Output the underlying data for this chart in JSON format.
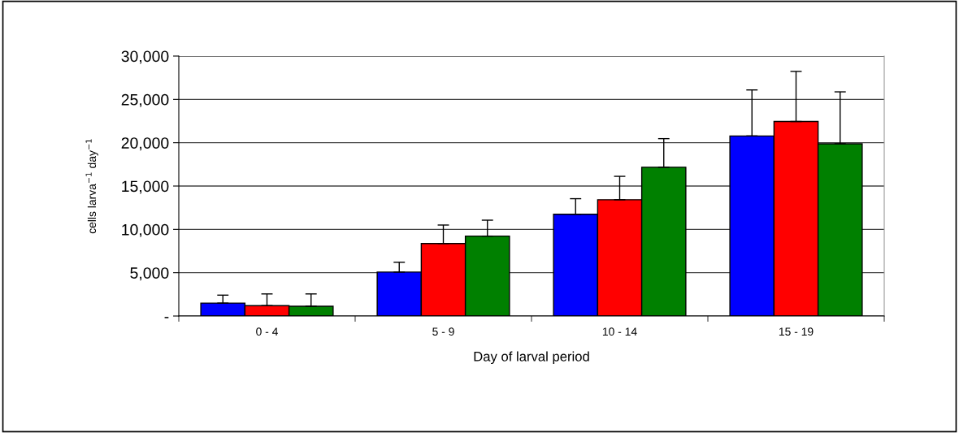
{
  "chart_data": {
    "type": "bar",
    "xlabel": "Day of larval period",
    "ylabel": "cells larva$^{−1}$ day$^{−1}$",
    "categories": [
      "0 - 4",
      "5 - 9",
      "10 - 14",
      "15 - 19"
    ],
    "series": [
      {
        "color": "#0000ff",
        "values": [
          1490,
          5070,
          11740,
          20780
        ],
        "errors": [
          [
            1490,
            2410
          ],
          [
            5070,
            6200
          ],
          [
            11740,
            13540
          ],
          [
            20780,
            26090
          ]
        ]
      },
      {
        "color": "#ff0000",
        "values": [
          1200,
          8370,
          13420,
          22450
        ],
        "errors": [
          [
            1200,
            2550
          ],
          [
            8370,
            10500
          ],
          [
            13420,
            16120
          ],
          [
            22450,
            28230
          ]
        ]
      },
      {
        "color": "#008000",
        "values": [
          1130,
          9220,
          17170,
          19880
        ],
        "errors": [
          [
            1130,
            2550
          ],
          [
            9220,
            11060
          ],
          [
            17170,
            20470
          ],
          [
            19880,
            25870
          ]
        ]
      }
    ],
    "ylim": [
      0,
      30000
    ],
    "yticks": [
      {
        "value": 0,
        "label": "-"
      },
      {
        "value": 5000,
        "label": "5,000"
      },
      {
        "value": 10000,
        "label": "10,000"
      },
      {
        "value": 15000,
        "label": "15,000"
      },
      {
        "value": 20000,
        "label": "20,000"
      },
      {
        "value": 25000,
        "label": "25,000"
      },
      {
        "value": 30000,
        "label": "30,000"
      }
    ],
    "grid": "y",
    "legend": false
  }
}
